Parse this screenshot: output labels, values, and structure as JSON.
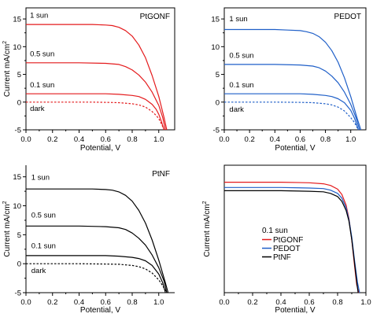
{
  "chart_data": [
    {
      "type": "line",
      "panel": "top-left",
      "title": "",
      "xlabel": "Potential, V",
      "ylabel": "Current mA/cm",
      "ylabel_sup": "2",
      "xlim": [
        0,
        1.12
      ],
      "ylim": [
        -5,
        17
      ],
      "xticks": [
        "0.0",
        "0.2",
        "0.4",
        "0.6",
        "0.8",
        "1.0"
      ],
      "yticks": [
        "-5",
        "0",
        "5",
        "10",
        "15"
      ],
      "xtick_values": [
        0,
        0.2,
        0.4,
        0.6,
        0.8,
        1.0
      ],
      "ytick_values": [
        -5,
        0,
        5,
        10,
        15
      ],
      "label_inside": "PtGONF",
      "box": "closed",
      "color": "#e41a1c",
      "series": [
        {
          "name": "1 sun",
          "color": "#e41a1c",
          "dash": "solid",
          "x": [
            0,
            0.1,
            0.2,
            0.3,
            0.4,
            0.5,
            0.6,
            0.65,
            0.7,
            0.75,
            0.8,
            0.85,
            0.9,
            0.95,
            1.0,
            1.04,
            1.06
          ],
          "y": [
            14.0,
            14.0,
            14.0,
            14.0,
            14.0,
            14.0,
            13.9,
            13.8,
            13.5,
            12.9,
            11.9,
            10.3,
            8.0,
            4.8,
            1.0,
            -2.8,
            -5.0
          ]
        },
        {
          "name": "0.5 sun",
          "color": "#e41a1c",
          "dash": "solid",
          "x": [
            0,
            0.2,
            0.4,
            0.6,
            0.7,
            0.75,
            0.8,
            0.85,
            0.9,
            0.95,
            1.0,
            1.03,
            1.05
          ],
          "y": [
            7.1,
            7.1,
            7.1,
            7.0,
            6.8,
            6.4,
            5.8,
            4.9,
            3.6,
            1.8,
            -0.6,
            -2.8,
            -5.0
          ]
        },
        {
          "name": "0.1 sun",
          "color": "#e41a1c",
          "dash": "solid",
          "x": [
            0,
            0.2,
            0.4,
            0.6,
            0.7,
            0.8,
            0.85,
            0.9,
            0.95,
            0.98,
            1.0,
            1.02,
            1.04
          ],
          "y": [
            1.5,
            1.5,
            1.5,
            1.5,
            1.4,
            1.2,
            1.0,
            0.5,
            -0.4,
            -1.3,
            -2.2,
            -3.5,
            -5.0
          ]
        },
        {
          "name": "dark",
          "color": "#e41a1c",
          "dash": "dotted",
          "x": [
            0,
            0.2,
            0.4,
            0.5,
            0.6,
            0.7,
            0.8,
            0.85,
            0.9,
            0.95,
            0.98,
            1.0,
            1.02,
            1.04
          ],
          "y": [
            0,
            0,
            0,
            0,
            -0.05,
            -0.1,
            -0.3,
            -0.5,
            -0.9,
            -1.7,
            -2.4,
            -3.0,
            -3.9,
            -5.0
          ]
        }
      ],
      "labels": [
        {
          "text": "1 sun",
          "x": 0.03,
          "y": 15.2
        },
        {
          "text": "0.5 sun",
          "x": 0.03,
          "y": 8.3
        },
        {
          "text": "0.1 sun",
          "x": 0.03,
          "y": 2.7
        },
        {
          "text": "dark",
          "x": 0.03,
          "y": -1.6
        }
      ]
    },
    {
      "type": "line",
      "panel": "top-right",
      "title": "",
      "xlabel": "Potential, V",
      "ylabel": "",
      "ylabel_sup": "",
      "xlim": [
        0,
        1.12
      ],
      "ylim": [
        -5,
        17
      ],
      "xticks": [
        "0.0",
        "0.2",
        "0.4",
        "0.6",
        "0.8",
        "1.0"
      ],
      "yticks": [
        "-5",
        "0",
        "5",
        "10",
        "15"
      ],
      "xtick_values": [
        0,
        0.2,
        0.4,
        0.6,
        0.8,
        1.0
      ],
      "ytick_values": [
        -5,
        0,
        5,
        10,
        15
      ],
      "label_inside": "PEDOT",
      "box": "closed",
      "color": "#1f5fc8",
      "series": [
        {
          "name": "1 sun",
          "color": "#1f5fc8",
          "dash": "solid",
          "x": [
            0,
            0.1,
            0.2,
            0.3,
            0.4,
            0.5,
            0.6,
            0.65,
            0.7,
            0.75,
            0.8,
            0.85,
            0.9,
            0.95,
            1.0,
            1.05,
            1.08
          ],
          "y": [
            13.1,
            13.1,
            13.1,
            13.1,
            13.1,
            13.0,
            12.9,
            12.7,
            12.4,
            11.8,
            10.8,
            9.3,
            7.2,
            4.4,
            1.0,
            -2.9,
            -5.0
          ]
        },
        {
          "name": "0.5 sun",
          "color": "#1f5fc8",
          "dash": "solid",
          "x": [
            0,
            0.2,
            0.4,
            0.6,
            0.7,
            0.75,
            0.8,
            0.85,
            0.9,
            0.95,
            1.0,
            1.04,
            1.07
          ],
          "y": [
            6.8,
            6.8,
            6.8,
            6.7,
            6.5,
            6.2,
            5.6,
            4.7,
            3.5,
            1.8,
            -0.4,
            -2.7,
            -5.0
          ]
        },
        {
          "name": "0.1 sun",
          "color": "#1f5fc8",
          "dash": "solid",
          "x": [
            0,
            0.2,
            0.4,
            0.6,
            0.7,
            0.8,
            0.85,
            0.9,
            0.95,
            1.0,
            1.03,
            1.06
          ],
          "y": [
            1.5,
            1.5,
            1.5,
            1.5,
            1.4,
            1.2,
            1.0,
            0.6,
            -0.1,
            -1.5,
            -2.9,
            -5.0
          ]
        },
        {
          "name": "dark",
          "color": "#1f5fc8",
          "dash": "dotted",
          "x": [
            0,
            0.2,
            0.4,
            0.6,
            0.7,
            0.8,
            0.85,
            0.9,
            0.95,
            1.0,
            1.03,
            1.06
          ],
          "y": [
            0,
            0,
            0,
            -0.05,
            -0.1,
            -0.3,
            -0.5,
            -0.9,
            -1.6,
            -2.8,
            -3.7,
            -5.0
          ]
        }
      ],
      "labels": [
        {
          "text": "1 sun",
          "x": 0.04,
          "y": 14.6
        },
        {
          "text": "0.5 sun",
          "x": 0.04,
          "y": 8.0
        },
        {
          "text": "0.1 sun",
          "x": 0.04,
          "y": 2.7
        },
        {
          "text": "dark",
          "x": 0.04,
          "y": -1.7
        }
      ]
    },
    {
      "type": "line",
      "panel": "bottom-left",
      "title": "",
      "xlabel": "Potential, V",
      "ylabel": "Current mA/cm",
      "ylabel_sup": "2",
      "xlim": [
        0,
        1.12
      ],
      "ylim": [
        -5,
        17
      ],
      "xticks": [
        "0.0",
        "0.2",
        "0.4",
        "0.6",
        "0.8",
        "1.0"
      ],
      "yticks": [
        "-5",
        "0",
        "5",
        "10",
        "15"
      ],
      "xtick_values": [
        0,
        0.2,
        0.4,
        0.6,
        0.8,
        1.0
      ],
      "ytick_values": [
        -5,
        0,
        5,
        10,
        15
      ],
      "label_inside": "PtNF",
      "box": "open",
      "color": "#000000",
      "series": [
        {
          "name": "1 sun",
          "color": "#000000",
          "dash": "solid",
          "x": [
            0,
            0.1,
            0.2,
            0.3,
            0.4,
            0.5,
            0.6,
            0.65,
            0.7,
            0.75,
            0.8,
            0.85,
            0.9,
            0.95,
            1.0,
            1.05,
            1.07
          ],
          "y": [
            12.9,
            12.9,
            12.9,
            12.9,
            12.9,
            12.9,
            12.8,
            12.7,
            12.4,
            11.8,
            10.8,
            9.2,
            7.0,
            4.1,
            0.6,
            -3.3,
            -5.0
          ]
        },
        {
          "name": "0.5 sun",
          "color": "#000000",
          "dash": "solid",
          "x": [
            0,
            0.2,
            0.4,
            0.6,
            0.7,
            0.75,
            0.8,
            0.85,
            0.9,
            0.95,
            1.0,
            1.04,
            1.06
          ],
          "y": [
            6.5,
            6.5,
            6.5,
            6.4,
            6.2,
            5.9,
            5.3,
            4.4,
            3.2,
            1.5,
            -0.7,
            -3.0,
            -5.0
          ]
        },
        {
          "name": "0.1 sun",
          "color": "#000000",
          "dash": "solid",
          "x": [
            0,
            0.2,
            0.4,
            0.6,
            0.7,
            0.8,
            0.85,
            0.9,
            0.95,
            1.0,
            1.03,
            1.05
          ],
          "y": [
            1.4,
            1.4,
            1.4,
            1.4,
            1.3,
            1.1,
            0.9,
            0.5,
            -0.3,
            -1.8,
            -3.3,
            -5.0
          ]
        },
        {
          "name": "dark",
          "color": "#000000",
          "dash": "dotted",
          "x": [
            0,
            0.2,
            0.4,
            0.6,
            0.7,
            0.8,
            0.85,
            0.9,
            0.95,
            1.0,
            1.03,
            1.06
          ],
          "y": [
            0,
            0,
            0,
            -0.05,
            -0.1,
            -0.3,
            -0.5,
            -0.9,
            -1.6,
            -2.8,
            -3.8,
            -5.0
          ]
        }
      ],
      "labels": [
        {
          "text": "1 sun",
          "x": 0.04,
          "y": 14.5
        },
        {
          "text": "0.5 sun",
          "x": 0.04,
          "y": 8.0
        },
        {
          "text": "0.1 sun",
          "x": 0.04,
          "y": 2.7
        },
        {
          "text": "dark",
          "x": 0.04,
          "y": -1.6
        }
      ]
    },
    {
      "type": "line",
      "panel": "bottom-right",
      "title": "",
      "xlabel": "Potential, V",
      "ylabel": "Current mA/cm",
      "ylabel_sup": "2",
      "xlim": [
        0,
        1.0
      ],
      "ylim": [
        -0.5,
        1.9
      ],
      "xticks": [
        "0.0",
        "0.2",
        "0.4",
        "0.6",
        "0.8",
        "1.0"
      ],
      "yticks": [],
      "xtick_values": [
        0,
        0.2,
        0.4,
        0.6,
        0.8,
        1.0
      ],
      "ytick_values": [],
      "label_inside": "",
      "box": "closed",
      "legend_title": "0.1 sun",
      "legend_position": "center-left",
      "series": [
        {
          "name": "PtGONF",
          "color": "#e41a1c",
          "dash": "solid",
          "x": [
            0,
            0.2,
            0.4,
            0.6,
            0.7,
            0.75,
            0.8,
            0.83,
            0.86,
            0.88,
            0.9,
            0.92,
            0.935,
            0.95
          ],
          "y": [
            1.58,
            1.58,
            1.58,
            1.57,
            1.55,
            1.52,
            1.45,
            1.35,
            1.15,
            0.9,
            0.5,
            0.0,
            -0.35,
            -0.5
          ]
        },
        {
          "name": "PEDOT",
          "color": "#1f5fc8",
          "dash": "solid",
          "x": [
            0,
            0.2,
            0.4,
            0.6,
            0.7,
            0.75,
            0.8,
            0.83,
            0.86,
            0.88,
            0.9,
            0.92,
            0.94,
            0.955
          ],
          "y": [
            1.48,
            1.48,
            1.48,
            1.47,
            1.46,
            1.43,
            1.37,
            1.28,
            1.1,
            0.88,
            0.55,
            0.1,
            -0.3,
            -0.5
          ]
        },
        {
          "name": "PtNF",
          "color": "#000000",
          "dash": "solid",
          "x": [
            0,
            0.2,
            0.4,
            0.6,
            0.7,
            0.75,
            0.8,
            0.83,
            0.86,
            0.88,
            0.9,
            0.92,
            0.935,
            0.945
          ],
          "y": [
            1.42,
            1.42,
            1.42,
            1.41,
            1.4,
            1.37,
            1.31,
            1.22,
            1.05,
            0.85,
            0.5,
            0.05,
            -0.3,
            -0.5
          ]
        }
      ],
      "labels": []
    }
  ]
}
